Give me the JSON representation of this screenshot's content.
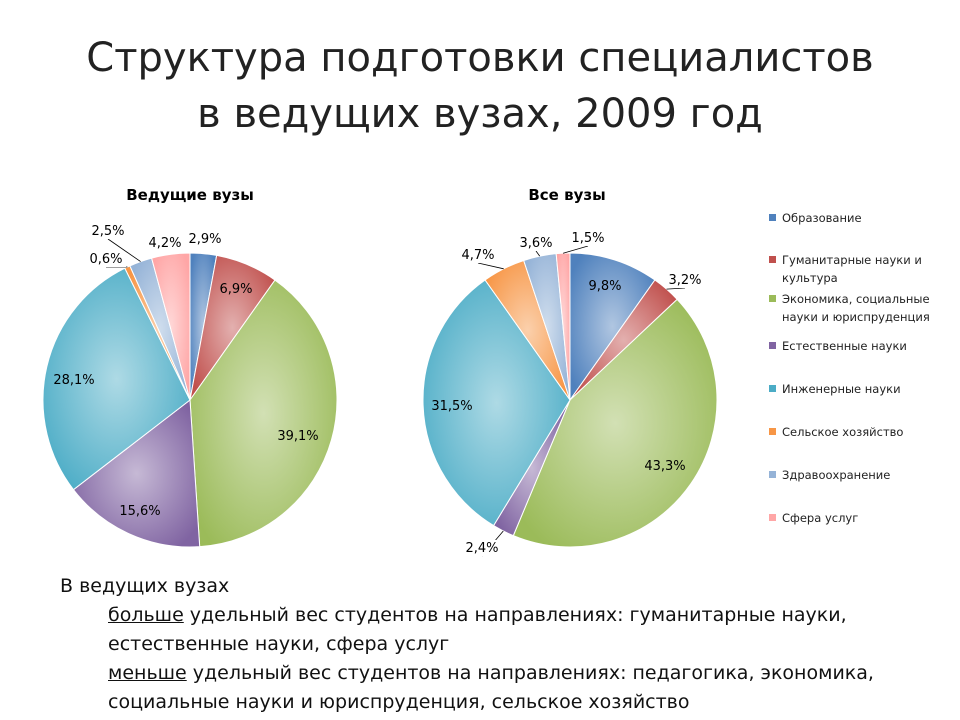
{
  "title": {
    "line1": "Структура подготовки специалистов",
    "line2": "в ведущих вузах, 2009 год"
  },
  "colors": {
    "education": "#4F81BD",
    "humanities": "#C0504D",
    "economics": "#9BBB59",
    "natural": "#8064A2",
    "engineering": "#4BACC6",
    "agriculture": "#F79646",
    "health": "#95B3D7",
    "services": "#FFA6A6"
  },
  "legend": [
    {
      "label": "Образование",
      "color_key": "education"
    },
    {
      "label": "Гуманитарные науки и культура",
      "color_key": "humanities"
    },
    {
      "label": "Экономика, социальные науки и юриспруденция",
      "color_key": "economics"
    },
    {
      "label": "Естественные науки",
      "color_key": "natural"
    },
    {
      "label": "Инженерные науки",
      "color_key": "engineering"
    },
    {
      "label": "Сельское хозяйство",
      "color_key": "agriculture"
    },
    {
      "label": "Здравоохранение",
      "color_key": "health"
    },
    {
      "label": "Сфера услуг",
      "color_key": "services"
    }
  ],
  "chart_data": [
    {
      "type": "pie",
      "title": "Ведущие вузы",
      "categories": [
        "Образование",
        "Гуманитарные науки и культура",
        "Экономика, социальные науки и юриспруденция",
        "Естественные науки",
        "Инженерные науки",
        "Сельское хозяйство",
        "Здравоохранение",
        "Сфера услуг"
      ],
      "values": [
        2.9,
        6.9,
        39.1,
        15.6,
        28.1,
        0.6,
        2.5,
        4.2
      ],
      "labels": [
        "2,9%",
        "6,9%",
        "39,1%",
        "15,6%",
        "28,1%",
        "0,6%",
        "2,5%",
        "4,2%"
      ],
      "legend_position": "right"
    },
    {
      "type": "pie",
      "title": "Все вузы",
      "categories": [
        "Образование",
        "Гуманитарные науки и культура",
        "Экономика, социальные науки и юриспруденция",
        "Естественные науки",
        "Инженерные науки",
        "Сельское хозяйство",
        "Здравоохранение",
        "Сфера услуг"
      ],
      "values": [
        9.8,
        3.2,
        43.3,
        2.4,
        31.5,
        4.7,
        3.6,
        1.5
      ],
      "labels": [
        "9,8%",
        "3,2%",
        "43,3%",
        "2,4%",
        "31,5%",
        "4,7%",
        "3,6%",
        "1,5%"
      ],
      "legend_position": "right"
    }
  ],
  "notes": {
    "heading": "В ведущих вузах",
    "more_word": "больше",
    "more_text": " удельный вес студентов на направлениях: гуманитарные науки,",
    "more_text2": "естественные науки, сфера услуг",
    "less_word": "меньше",
    "less_text": " удельный вес студентов на направлениях: педагогика, экономика,",
    "less_text2": "социальные науки и юриспруденция, сельское хозяйство"
  }
}
